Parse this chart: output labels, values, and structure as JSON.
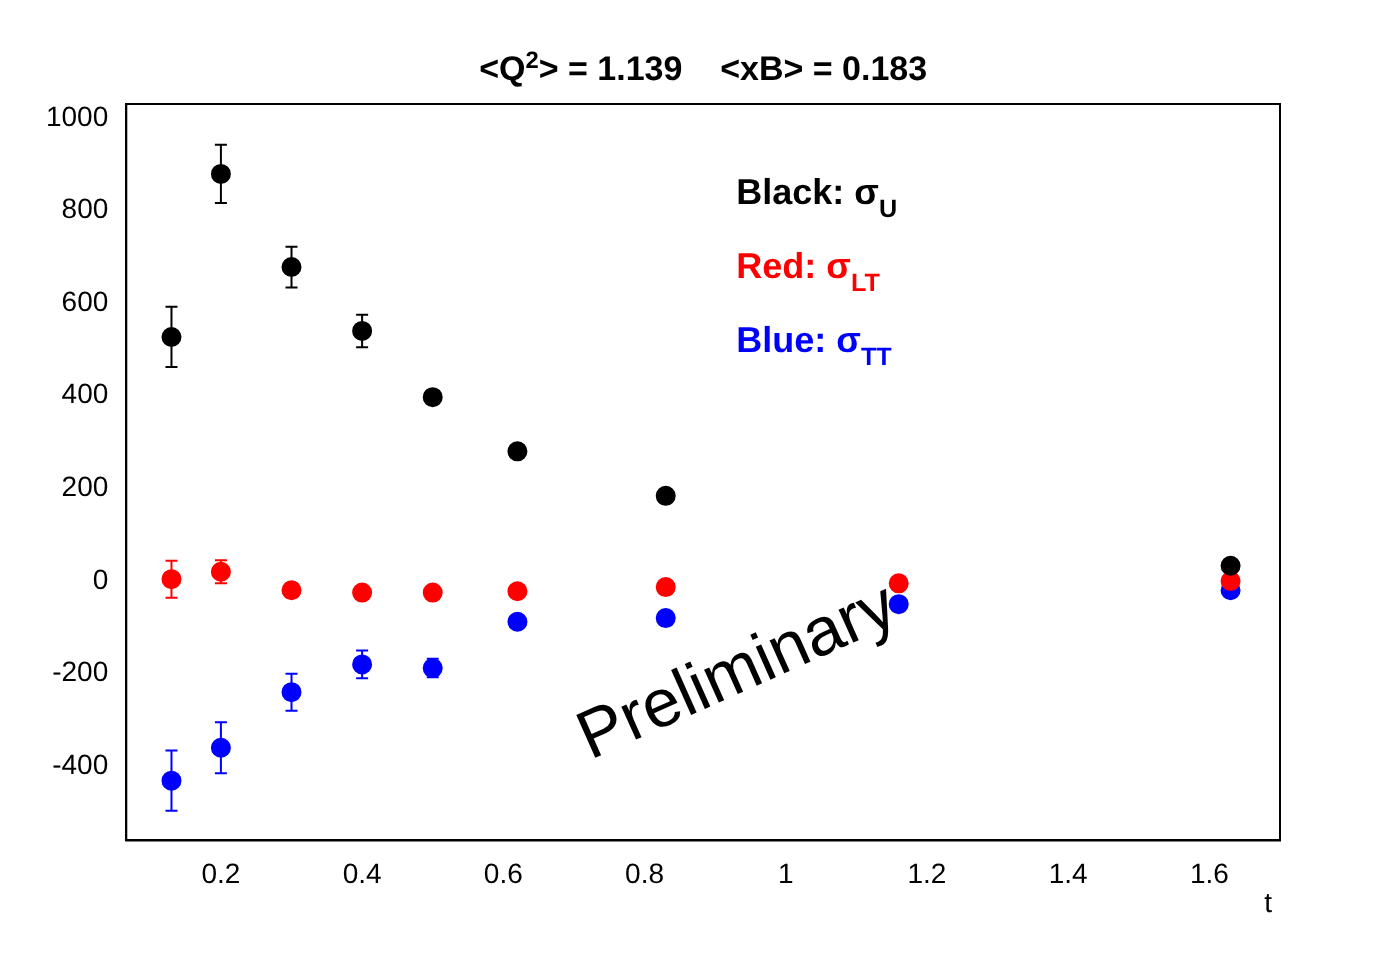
{
  "chart_data": {
    "type": "scatter",
    "title": "<Q$^{2}$> = 1.139    <xB> = 0.183",
    "xlabel": "t",
    "x": [
      0.13,
      0.2,
      0.3,
      0.4,
      0.5,
      0.62,
      0.83,
      1.16,
      1.63
    ],
    "series": [
      {
        "name": "Black: σ$_{U}$",
        "color": "#000000",
        "values": [
          527,
          879,
          678,
          540,
          397,
          280,
          184,
          null,
          33
        ],
        "errors": [
          65,
          63,
          44,
          35,
          15,
          null,
          null,
          null,
          null
        ]
      },
      {
        "name": "Red: σ$_{LT}$",
        "color": "#ff0000",
        "values": [
          4,
          20,
          -20,
          -25,
          -25,
          -22,
          -13,
          -5,
          0
        ],
        "errors": [
          40,
          25,
          15,
          null,
          null,
          null,
          null,
          null,
          null
        ]
      },
      {
        "name": "Blue: σ$_{TT}$",
        "color": "#0000ff",
        "values": [
          -431,
          -360,
          -240,
          -180,
          -188,
          -88,
          -80,
          -50,
          -20
        ],
        "errors": [
          65,
          55,
          40,
          30,
          20,
          null,
          null,
          null,
          null
        ]
      }
    ],
    "xlim": [
      0.066,
      1.7
    ],
    "xticks": [
      0.2,
      0.4,
      0.6,
      0.8,
      1,
      1.2,
      1.4,
      1.6
    ],
    "ylim": [
      -560,
      1030
    ],
    "yticks": [
      -400,
      -200,
      0,
      200,
      400,
      600,
      800,
      1000
    ],
    "grid": false,
    "legend": "top right",
    "marker": "circle",
    "annotations": [
      "Preliminary"
    ]
  }
}
